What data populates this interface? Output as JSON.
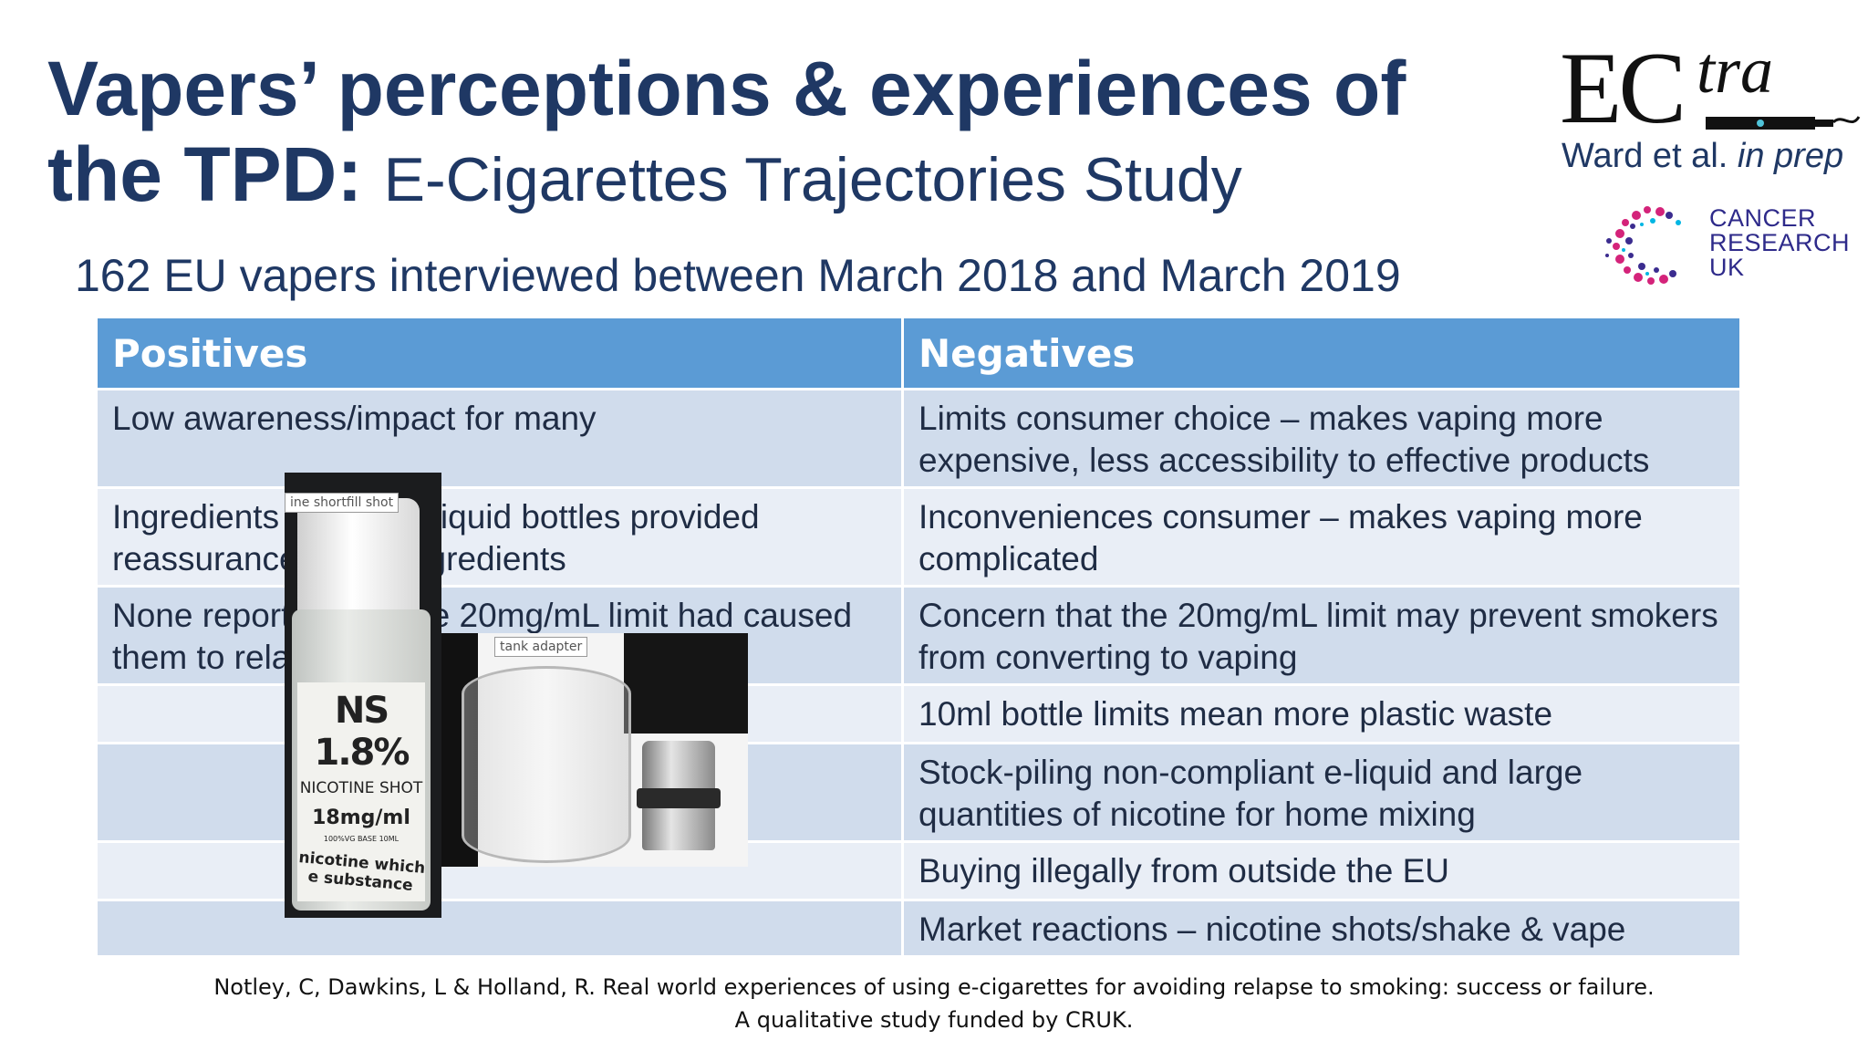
{
  "title": {
    "main_line1": "Vapers’ perceptions & experiences of",
    "main_line2": "the TPD:",
    "subtitle": "E-Cigarettes Trajectories Study"
  },
  "subheading": "162 EU vapers interviewed between March 2018 and March 2019",
  "logos": {
    "ectra_ec": "EC",
    "ectra_tra": "tra",
    "citation_authors": "Ward et al.",
    "citation_status": "in prep",
    "cruk_line1": "CANCER",
    "cruk_line2": "RESEARCH",
    "cruk_line3": "UK"
  },
  "table": {
    "headers": [
      "Positives",
      "Negatives"
    ],
    "rows": [
      {
        "positive": "Low awareness/impact for many",
        "negative": "Limits consumer choice – makes vaping more expensive, less accessibility to effective products"
      },
      {
        "positive": "Ingredients lists on e-liquid bottles provided reassurance about ingredients",
        "negative": "Inconveniences consumer – makes vaping more complicated"
      },
      {
        "positive": "None reported that the 20mg/mL limit had caused them to relapse to smoking",
        "negative": "Concern that the 20mg/mL limit may prevent smokers from converting to vaping"
      },
      {
        "positive": "",
        "negative": "10ml bottle limits mean more plastic waste"
      },
      {
        "positive": "",
        "negative": "Stock-piling non-compliant e-liquid and large quantities of nicotine for home mixing"
      },
      {
        "positive": "",
        "negative": "Buying illegally from outside the EU"
      },
      {
        "positive": "",
        "negative": "Market reactions – nicotine shots/shake & vape"
      }
    ]
  },
  "images": {
    "shortfill_tag": "ine shortfill shot",
    "bottle_brand": "NS 1.8%",
    "bottle_product": "NICOTINE SHOT",
    "bottle_strength": "18mg/ml",
    "bottle_small": "100%VG BASE 10ML",
    "bottle_warning": "nicotine which e substance",
    "tank_tag": "tank adapter"
  },
  "footer": {
    "line1": "Notley, C, Dawkins, L & Holland, R. Real world experiences of using e-cigarettes for avoiding relapse to smoking: success or failure.",
    "line2": "A qualitative study funded by CRUK."
  },
  "colors": {
    "title": "#1f3864",
    "header_bg": "#5b9bd5",
    "row_dark": "#d0dcec",
    "row_light": "#e9eef6"
  }
}
